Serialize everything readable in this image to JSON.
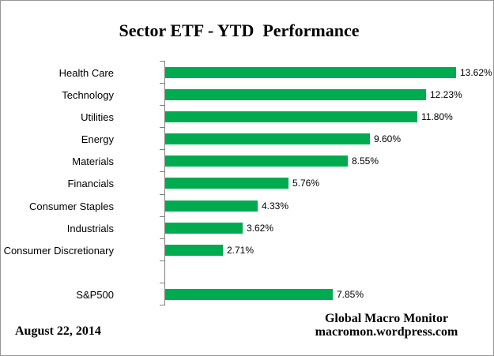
{
  "title": "Sector ETF - YTD  Performance",
  "footer": {
    "date": "August 22, 2014",
    "credit_line1": "Global Macro Monitor",
    "credit_line2": "macromon.wordpress.com"
  },
  "chart_data": {
    "type": "bar",
    "orientation": "horizontal",
    "title": "Sector ETF - YTD  Performance",
    "categories": [
      "Health Care",
      "Technology",
      "Utilities",
      "Energy",
      "Materials",
      "Financials",
      "Consumer Staples",
      "Industrials",
      "Consumer Discretionary",
      "",
      "S&P500"
    ],
    "values": [
      13.62,
      12.23,
      11.8,
      9.6,
      8.55,
      5.76,
      4.33,
      3.62,
      2.71,
      null,
      7.85
    ],
    "value_labels": [
      "13.62%",
      "12.23%",
      "11.80%",
      "9.60%",
      "8.55%",
      "5.76%",
      "4.33%",
      "3.62%",
      "2.71%",
      null,
      "7.85%"
    ],
    "xlim": [
      0,
      15
    ],
    "grid": false,
    "legend": false,
    "bar_color": "#00AB50",
    "axis_color": "#808080",
    "text_color": "#000000"
  }
}
